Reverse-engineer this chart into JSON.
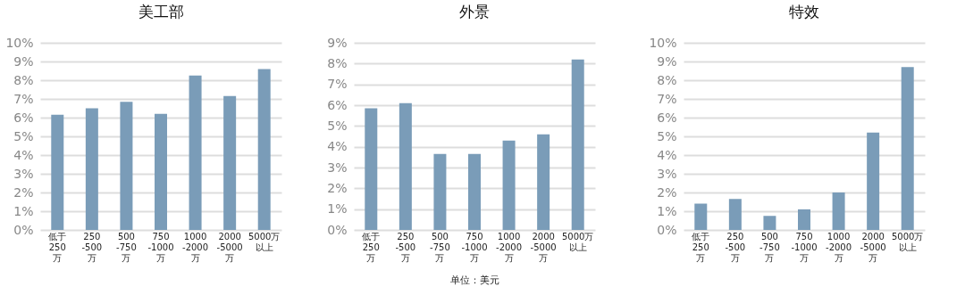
{
  "chart_data": [
    {
      "type": "bar",
      "title": "美工部",
      "categories": [
        "低于\n250\n万",
        "250\n-500\n万",
        "500\n-750\n万",
        "750\n-1000\n万",
        "1000\n-2000\n万",
        "2000\n-5000\n万",
        "5000万以上"
      ],
      "values": [
        6.15,
        6.5,
        6.85,
        6.2,
        8.25,
        7.15,
        8.6
      ],
      "color": "#7a9cb8",
      "ylim": [
        0,
        10
      ],
      "yticks": [
        {
          "value": 0,
          "label": "0%"
        },
        {
          "value": 1,
          "label": "1%"
        },
        {
          "value": 2,
          "label": "2%"
        },
        {
          "value": 3,
          "label": "3%"
        },
        {
          "value": 4,
          "label": "4%"
        },
        {
          "value": 5,
          "label": "5%"
        },
        {
          "value": 6,
          "label": "6%"
        },
        {
          "value": 7,
          "label": "7%"
        },
        {
          "value": 8,
          "label": "8%"
        },
        {
          "value": 9,
          "label": "9%"
        },
        {
          "value": 10,
          "label": "10%"
        }
      ],
      "grid": "y"
    },
    {
      "type": "bar",
      "title": "外景",
      "categories": [
        "低于\n250\n万",
        "250\n-500\n万",
        "500\n-750\n万",
        "750\n-1000\n万",
        "1000\n-2000\n万",
        "2000\n-5000\n万",
        "5000万以上"
      ],
      "values": [
        5.85,
        6.1,
        3.65,
        3.65,
        4.3,
        4.6,
        8.2
      ],
      "color": "#7a9cb8",
      "ylim": [
        0,
        9
      ],
      "yticks": [
        {
          "value": 0,
          "label": "0%"
        },
        {
          "value": 1,
          "label": "1%"
        },
        {
          "value": 2,
          "label": "2%"
        },
        {
          "value": 3,
          "label": "3%"
        },
        {
          "value": 4,
          "label": "4%"
        },
        {
          "value": 5,
          "label": "5%"
        },
        {
          "value": 6,
          "label": "6%"
        },
        {
          "value": 7,
          "label": "7%"
        },
        {
          "value": 8,
          "label": "8%"
        },
        {
          "value": 9,
          "label": "9%"
        }
      ],
      "grid": "y",
      "annotations": [
        "单位：美元"
      ]
    },
    {
      "type": "bar",
      "title": "特效",
      "categories": [
        "低于\n250\n万",
        "250\n-500\n万",
        "500\n-750\n万",
        "750\n-1000\n万",
        "1000\n-2000\n万",
        "2000\n-5000\n万",
        "5000万以上"
      ],
      "values": [
        1.4,
        1.65,
        0.75,
        1.1,
        2.0,
        5.2,
        8.7
      ],
      "color": "#7a9cb8",
      "ylim": [
        0,
        10
      ],
      "yticks": [
        {
          "value": 0,
          "label": "0%"
        },
        {
          "value": 1,
          "label": "1%"
        },
        {
          "value": 2,
          "label": "2%"
        },
        {
          "value": 3,
          "label": "3%"
        },
        {
          "value": 4,
          "label": "4%"
        },
        {
          "value": 5,
          "label": "5%"
        },
        {
          "value": 6,
          "label": "6%"
        },
        {
          "value": 7,
          "label": "7%"
        },
        {
          "value": 8,
          "label": "8%"
        },
        {
          "value": 9,
          "label": "9%"
        },
        {
          "value": 10,
          "label": "10%"
        }
      ],
      "grid": "y"
    }
  ]
}
